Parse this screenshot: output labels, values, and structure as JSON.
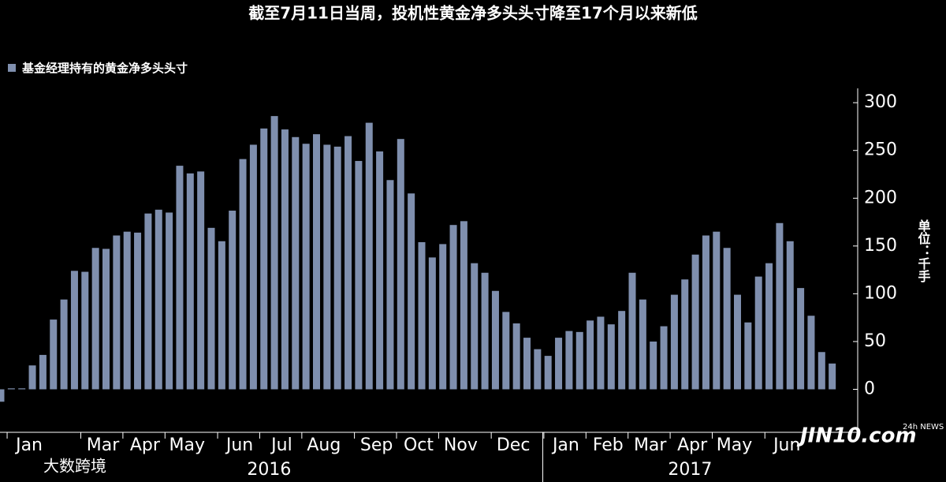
{
  "chart_data": {
    "type": "bar",
    "title": "截至7月11日当周，投机性黄金净多头头寸降至17个月以来新低",
    "y_axis_label": "单位：千手",
    "series": [
      {
        "name": "基金经理持有的黄金净多头头寸",
        "color": "#7f8fae",
        "values": [
          -13,
          1,
          1,
          25,
          36,
          73,
          94,
          124,
          123,
          148,
          147,
          161,
          165,
          164,
          184,
          188,
          185,
          234,
          226,
          228,
          169,
          155,
          187,
          241,
          256,
          273,
          286,
          272,
          264,
          257,
          267,
          256,
          254,
          265,
          239,
          279,
          249,
          219,
          262,
          205,
          154,
          138,
          152,
          172,
          176,
          132,
          122,
          103,
          81,
          69,
          54,
          42,
          35,
          54,
          61,
          60,
          72,
          76,
          68,
          82,
          122,
          94,
          50,
          66,
          99,
          115,
          141,
          161,
          165,
          148,
          99,
          70,
          118,
          132,
          174,
          155,
          106,
          77,
          39,
          27
        ]
      }
    ],
    "categories": [
      null,
      null,
      null,
      "Jan",
      null,
      null,
      null,
      null,
      null,
      null,
      "Mar",
      null,
      null,
      null,
      "Apr",
      null,
      null,
      null,
      "May",
      null,
      null,
      null,
      null,
      "Jun",
      null,
      null,
      null,
      "Jul",
      null,
      null,
      null,
      "Aug",
      null,
      null,
      null,
      null,
      "Sep",
      null,
      null,
      null,
      "Oct",
      null,
      null,
      null,
      "Nov",
      null,
      null,
      null,
      null,
      "Dec",
      null,
      null,
      null,
      null,
      "Jan",
      null,
      null,
      null,
      "Feb",
      null,
      null,
      null,
      "Mar",
      null,
      null,
      null,
      "Apr",
      null,
      null,
      null,
      "May",
      null,
      null,
      null,
      null,
      "Jun",
      null,
      null,
      null,
      null
    ],
    "year_groups": [
      {
        "label": "2016",
        "start": 0,
        "end": 51
      },
      {
        "label": "2017",
        "start": 52,
        "end": 79
      }
    ],
    "ylim": [
      -45,
      315
    ],
    "yticks": [
      0,
      50,
      100,
      150,
      200,
      250,
      300
    ],
    "y_axis_side": "right",
    "legend_position": "top-left"
  },
  "watermarks": [
    "大数跨境",
    "JIN10.com",
    "24h NEWS"
  ]
}
